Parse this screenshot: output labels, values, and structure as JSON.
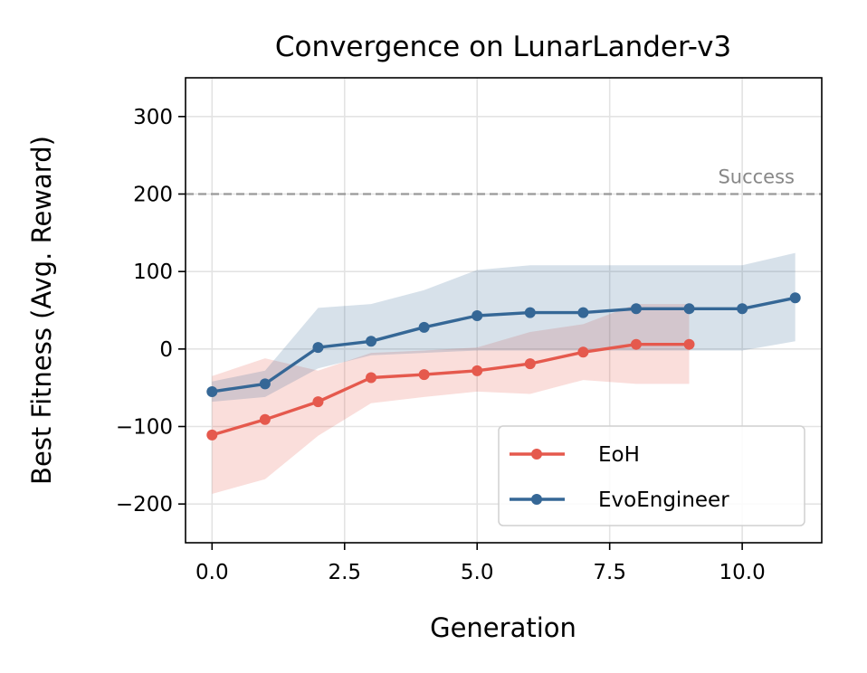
{
  "chart_data": {
    "type": "line",
    "title": "Convergence on LunarLander-v3",
    "xlabel": "Generation",
    "ylabel": "Best Fitness (Avg. Reward)",
    "xlim": [
      -0.5,
      11.5
    ],
    "ylim": [
      -250,
      350
    ],
    "xticks": [
      0,
      2.5,
      5,
      7.5,
      10
    ],
    "xtick_labels": [
      "0.0",
      "2.5",
      "5.0",
      "7.5",
      "10.0"
    ],
    "yticks": [
      -200,
      -100,
      0,
      100,
      200,
      300
    ],
    "ytick_labels": [
      "−200",
      "−100",
      "0",
      "100",
      "200",
      "300"
    ],
    "grid": true,
    "legend_position": "lower-right",
    "reference_line": {
      "y": 200,
      "label": "Success",
      "color": "#999999"
    },
    "series": [
      {
        "name": "EoH",
        "color": "#e5594d",
        "x": [
          0,
          1,
          2,
          3,
          4,
          5,
          6,
          7,
          8,
          9
        ],
        "values": [
          -111,
          -91,
          -68,
          -37,
          -33,
          -28,
          -19,
          -4,
          6,
          6
        ],
        "band_upper": [
          -35,
          -12,
          -28,
          -5,
          -2,
          2,
          22,
          32,
          58,
          58
        ],
        "band_lower": [
          -187,
          -168,
          -112,
          -70,
          -62,
          -55,
          -58,
          -40,
          -45,
          -45
        ]
      },
      {
        "name": "EvoEngineer",
        "color": "#356796",
        "x": [
          0,
          1,
          2,
          3,
          4,
          5,
          6,
          7,
          8,
          9,
          10,
          11
        ],
        "values": [
          -55,
          -45,
          2,
          10,
          28,
          43,
          47,
          47,
          52,
          52,
          52,
          66
        ],
        "band_upper": [
          -42,
          -28,
          53,
          58,
          76,
          102,
          108,
          108,
          108,
          108,
          108,
          124
        ],
        "band_lower": [
          -68,
          -62,
          -25,
          -8,
          -5,
          -2,
          -2,
          -2,
          -2,
          -2,
          -2,
          10
        ]
      }
    ]
  }
}
